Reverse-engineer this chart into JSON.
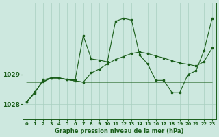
{
  "title": "Graphe pression niveau de la mer (hPa)",
  "bg_color": "#cde8df",
  "line_color": "#1a5e1a",
  "grid_color": "#a8cfc0",
  "ylim": [
    1027.5,
    1031.4
  ],
  "yticks": [
    1028,
    1029
  ],
  "x_ticks": [
    0,
    1,
    2,
    3,
    4,
    5,
    6,
    7,
    8,
    9,
    10,
    11,
    12,
    13,
    14,
    15,
    16,
    17,
    18,
    19,
    20,
    21,
    22,
    23
  ],
  "series1": [
    1028.08,
    1028.42,
    1028.76,
    1028.88,
    1028.88,
    1028.83,
    1028.78,
    1028.74,
    1029.05,
    1029.18,
    1029.35,
    1029.5,
    1029.6,
    1029.7,
    1029.75,
    1029.7,
    1029.62,
    1029.55,
    1029.46,
    1029.38,
    1029.34,
    1029.28,
    1029.43,
    1029.88
  ],
  "series2": [
    1028.74,
    1028.74,
    1028.74,
    1028.88,
    1028.88,
    1028.83,
    1028.78,
    1028.74,
    1028.74,
    1028.74,
    1028.74,
    1028.74,
    1028.74,
    1028.74,
    1028.74,
    1028.74,
    1028.74,
    1028.74,
    1028.74,
    1028.74,
    1028.74,
    1028.74,
    1028.74,
    1028.74
  ],
  "series3": [
    1028.08,
    1028.38,
    1028.82,
    1028.88,
    1028.88,
    1028.82,
    1028.82,
    1030.3,
    1029.52,
    1029.48,
    1029.42,
    1030.78,
    1030.88,
    1030.82,
    1029.65,
    1029.35,
    1028.8,
    1028.8,
    1028.4,
    1028.4,
    1029.0,
    1029.12,
    1029.8,
    1030.88
  ]
}
